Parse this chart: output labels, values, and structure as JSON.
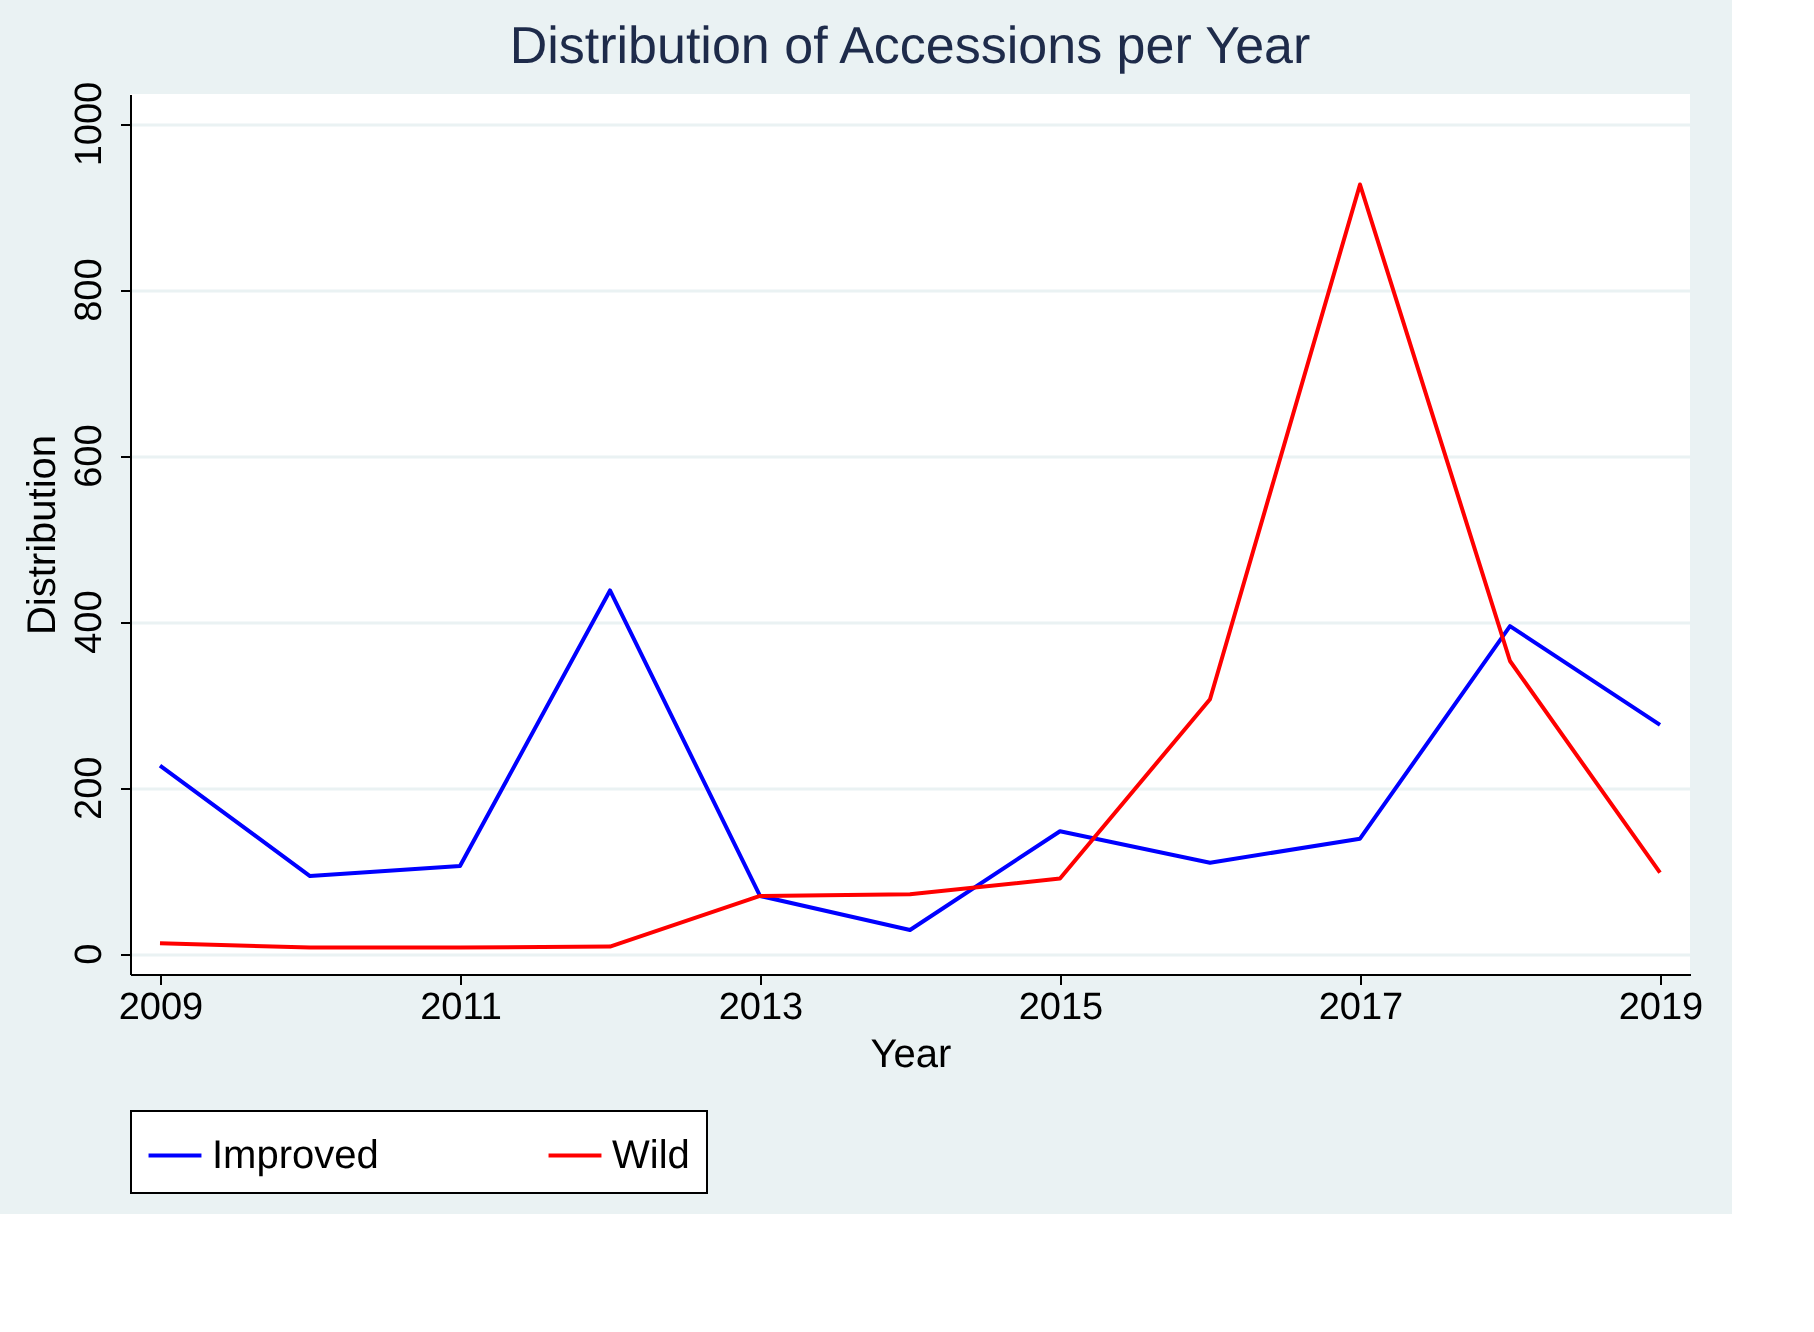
{
  "chart_data": {
    "type": "line",
    "title": "Distribution of Accessions per Year",
    "xlabel": "Year",
    "ylabel": "Distribution",
    "x": [
      2009,
      2010,
      2011,
      2012,
      2013,
      2014,
      2015,
      2016,
      2017,
      2018,
      2019
    ],
    "series": [
      {
        "name": "Improved",
        "color": "#0000ff",
        "values": [
          226,
          93,
          105,
          437,
          69,
          28,
          147,
          109,
          138,
          394,
          275
        ]
      },
      {
        "name": "Wild",
        "color": "#ff0000",
        "values": [
          12,
          7,
          7,
          8,
          69,
          71,
          90,
          306,
          926,
          352,
          97
        ]
      }
    ],
    "xlim": [
      2008.8,
      2019.2
    ],
    "xticks": [
      2009,
      2011,
      2013,
      2015,
      2017,
      2019
    ],
    "ylim": [
      -25,
      1035
    ],
    "yticks": [
      0,
      200,
      400,
      600,
      800,
      1000
    ],
    "grid": "y",
    "legend": "bottom",
    "marker": "none",
    "line_style": "solid"
  }
}
